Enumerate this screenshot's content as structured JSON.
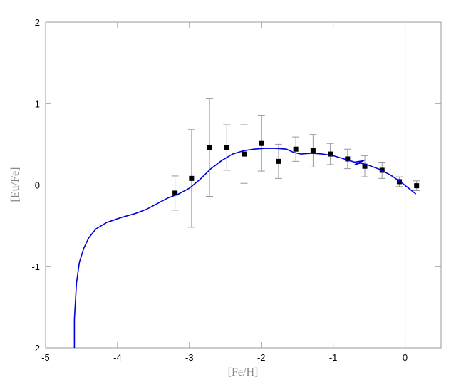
{
  "chart_data": {
    "type": "scatter",
    "x_label": "[Fe/H]",
    "y_label": "[Eu/Fe]",
    "xlim": [
      -5,
      0.5
    ],
    "ylim": [
      -2,
      2
    ],
    "xticks": [
      -5,
      -4,
      -3,
      -2,
      -1,
      0
    ],
    "yticks": [
      -2,
      -1,
      0,
      1,
      2
    ],
    "zero_lines": true,
    "series": [
      {
        "kind": "points",
        "color": "#000000",
        "error_color": "#999999",
        "x": [
          -3.2,
          -2.97,
          -2.72,
          -2.48,
          -2.24,
          -2.0,
          -1.76,
          -1.52,
          -1.28,
          -1.04,
          -0.8,
          -0.56,
          -0.32,
          -0.08,
          0.16
        ],
        "values": [
          -0.1,
          0.08,
          0.46,
          0.46,
          0.38,
          0.51,
          0.29,
          0.44,
          0.42,
          0.38,
          0.32,
          0.23,
          0.18,
          0.04,
          -0.01
        ],
        "errors": [
          0.21,
          0.6,
          0.6,
          0.28,
          0.36,
          0.34,
          0.21,
          0.15,
          0.2,
          0.13,
          0.12,
          0.13,
          0.1,
          0.06,
          0.06
        ]
      },
      {
        "kind": "line",
        "color": "#0000dd",
        "x": [
          -4.6,
          -4.6,
          -4.57,
          -4.53,
          -4.47,
          -4.4,
          -4.3,
          -4.15,
          -3.95,
          -3.75,
          -3.6,
          -3.45,
          -3.3,
          -3.15,
          -3.0,
          -2.85,
          -2.7,
          -2.55,
          -2.4,
          -2.25,
          -2.1,
          -1.95,
          -1.8,
          -1.65,
          -1.55,
          -1.45,
          -1.3,
          -1.15,
          -1.0,
          -0.85,
          -0.7,
          -0.57,
          -0.7,
          -0.62,
          -0.5,
          -0.35,
          -0.2,
          -0.05,
          0.05,
          0.15
        ],
        "values": [
          -2,
          -1.65,
          -1.2,
          -0.95,
          -0.78,
          -0.65,
          -0.54,
          -0.46,
          -0.4,
          -0.35,
          -0.3,
          -0.23,
          -0.16,
          -0.11,
          -0.04,
          0.07,
          0.2,
          0.3,
          0.38,
          0.42,
          0.44,
          0.45,
          0.45,
          0.44,
          0.4,
          0.38,
          0.39,
          0.38,
          0.36,
          0.32,
          0.28,
          0.3,
          0.25,
          0.27,
          0.24,
          0.19,
          0.12,
          0.03,
          -0.04,
          -0.11
        ]
      }
    ]
  }
}
